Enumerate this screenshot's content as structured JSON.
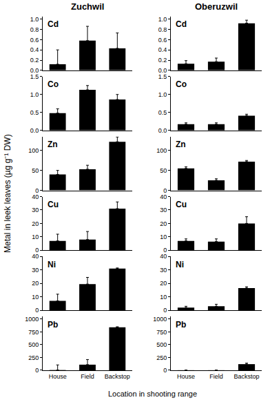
{
  "chart_data": [
    {
      "type": "bar",
      "title": "Zuchwil",
      "annotation": "Cd",
      "categories": [
        "House",
        "Field",
        "Backstop"
      ],
      "values": [
        0.12,
        0.58,
        0.43
      ],
      "errors": [
        0.28,
        0.28,
        0.3
      ],
      "color": "#000000",
      "ylim": [
        0,
        1.05
      ],
      "yticks": [
        {
          "value": 0,
          "label": "0.0"
        },
        {
          "value": 0.2,
          "label": "0.2"
        },
        {
          "value": 0.4,
          "label": "0.4"
        },
        {
          "value": 0.6,
          "label": "0.6"
        },
        {
          "value": 0.8,
          "label": "0.8"
        },
        {
          "value": 1,
          "label": "1.0"
        }
      ],
      "tick_labels": "y"
    },
    {
      "type": "bar",
      "title": "Oberuzwil",
      "annotation": "Cd",
      "categories": [
        "House",
        "Field",
        "Backstop"
      ],
      "values": [
        0.13,
        0.17,
        0.92
      ],
      "errors": [
        0.06,
        0.07,
        0.06
      ],
      "color": "#000000",
      "ylim": [
        0,
        1.05
      ],
      "yticks": [
        {
          "value": 0,
          "label": "0.0"
        },
        {
          "value": 0.2,
          "label": "0.2"
        },
        {
          "value": 0.4,
          "label": "0.4"
        },
        {
          "value": 0.6,
          "label": "0.6"
        },
        {
          "value": 0.8,
          "label": "0.8"
        },
        {
          "value": 1,
          "label": "1.0"
        }
      ],
      "tick_labels": "y"
    },
    {
      "type": "bar",
      "annotation": "Co",
      "categories": [
        "House",
        "Field",
        "Backstop"
      ],
      "values": [
        0.48,
        1.13,
        0.86
      ],
      "errors": [
        0.12,
        0.12,
        0.14
      ],
      "color": "#000000",
      "ylim": [
        0,
        1.5
      ],
      "yticks": [
        {
          "value": 0,
          "label": "0.0"
        },
        {
          "value": 0.5,
          "label": "0.5"
        },
        {
          "value": 1,
          "label": "1.0"
        },
        {
          "value": 1.5,
          "label": "1.5"
        }
      ],
      "tick_labels": "y"
    },
    {
      "type": "bar",
      "annotation": "Co",
      "categories": [
        "House",
        "Field",
        "Backstop"
      ],
      "values": [
        0.17,
        0.17,
        0.41
      ],
      "errors": [
        0.04,
        0.04,
        0.04
      ],
      "color": "#000000",
      "ylim": [
        0,
        1.5
      ],
      "yticks": [
        {
          "value": 0,
          "label": "0.0"
        },
        {
          "value": 0.5,
          "label": "0.5"
        },
        {
          "value": 1,
          "label": "1.0"
        },
        {
          "value": 1.5,
          "label": "1.5"
        }
      ],
      "tick_labels": "y"
    },
    {
      "type": "bar",
      "annotation": "Zn",
      "categories": [
        "House",
        "Field",
        "Backstop"
      ],
      "values": [
        40,
        53,
        122
      ],
      "errors": [
        10,
        10,
        12
      ],
      "color": "#000000",
      "ylim": [
        0,
        135
      ],
      "yticks": [
        0,
        50,
        100
      ],
      "tick_labels": "y"
    },
    {
      "type": "bar",
      "annotation": "Zn",
      "categories": [
        "House",
        "Field",
        "Backstop"
      ],
      "values": [
        55,
        25,
        72
      ],
      "errors": [
        4,
        4,
        3
      ],
      "color": "#000000",
      "ylim": [
        0,
        135
      ],
      "yticks": [
        0,
        50,
        100
      ],
      "tick_labels": "y"
    },
    {
      "type": "bar",
      "annotation": "Cu",
      "categories": [
        "House",
        "Field",
        "Backstop"
      ],
      "values": [
        7,
        8,
        31
      ],
      "errors": [
        5,
        6,
        5
      ],
      "color": "#000000",
      "ylim": [
        0,
        40
      ],
      "yticks": [
        0,
        10,
        20,
        30,
        40
      ],
      "tick_labels": "y"
    },
    {
      "type": "bar",
      "annotation": "Cu",
      "categories": [
        "House",
        "Field",
        "Backstop"
      ],
      "values": [
        7,
        6.5,
        20
      ],
      "errors": [
        1.5,
        2,
        5
      ],
      "color": "#000000",
      "ylim": [
        0,
        40
      ],
      "yticks": [
        0,
        10,
        20,
        30,
        40
      ],
      "tick_labels": "y"
    },
    {
      "type": "bar",
      "annotation": "Ni",
      "categories": [
        "House",
        "Field",
        "Backstop"
      ],
      "values": [
        7,
        19.5,
        31
      ],
      "errors": [
        5,
        5,
        0.5
      ],
      "color": "#000000",
      "ylim": [
        0,
        40
      ],
      "yticks": [
        0,
        10,
        20,
        30,
        40
      ],
      "tick_labels": "y"
    },
    {
      "type": "bar",
      "annotation": "Ni",
      "categories": [
        "House",
        "Field",
        "Backstop"
      ],
      "values": [
        2,
        3,
        16.5
      ],
      "errors": [
        1,
        1.5,
        1
      ],
      "color": "#000000",
      "ylim": [
        0,
        40
      ],
      "yticks": [
        0,
        10,
        20,
        30,
        40
      ],
      "tick_labels": "y"
    },
    {
      "type": "bar",
      "annotation": "Pb",
      "categories": [
        "House",
        "Field",
        "Backstop"
      ],
      "values": [
        5,
        110,
        840
      ],
      "errors": [
        100,
        100,
        10
      ],
      "color": "#000000",
      "ylim": [
        0,
        1050
      ],
      "yticks": [
        0,
        250,
        500,
        750,
        1000
      ]
    },
    {
      "type": "bar",
      "annotation": "Pb",
      "categories": [
        "House",
        "Field",
        "Backstop"
      ],
      "values": [
        2,
        2,
        120
      ],
      "errors": [
        2,
        2,
        20
      ],
      "color": "#000000",
      "ylim": [
        0,
        1050
      ],
      "yticks": [
        0,
        250,
        500,
        750,
        1000
      ]
    }
  ],
  "ylabel": "Metal in leek leaves (µg g⁻¹ DW)",
  "xlabel": "Location in shooting range"
}
